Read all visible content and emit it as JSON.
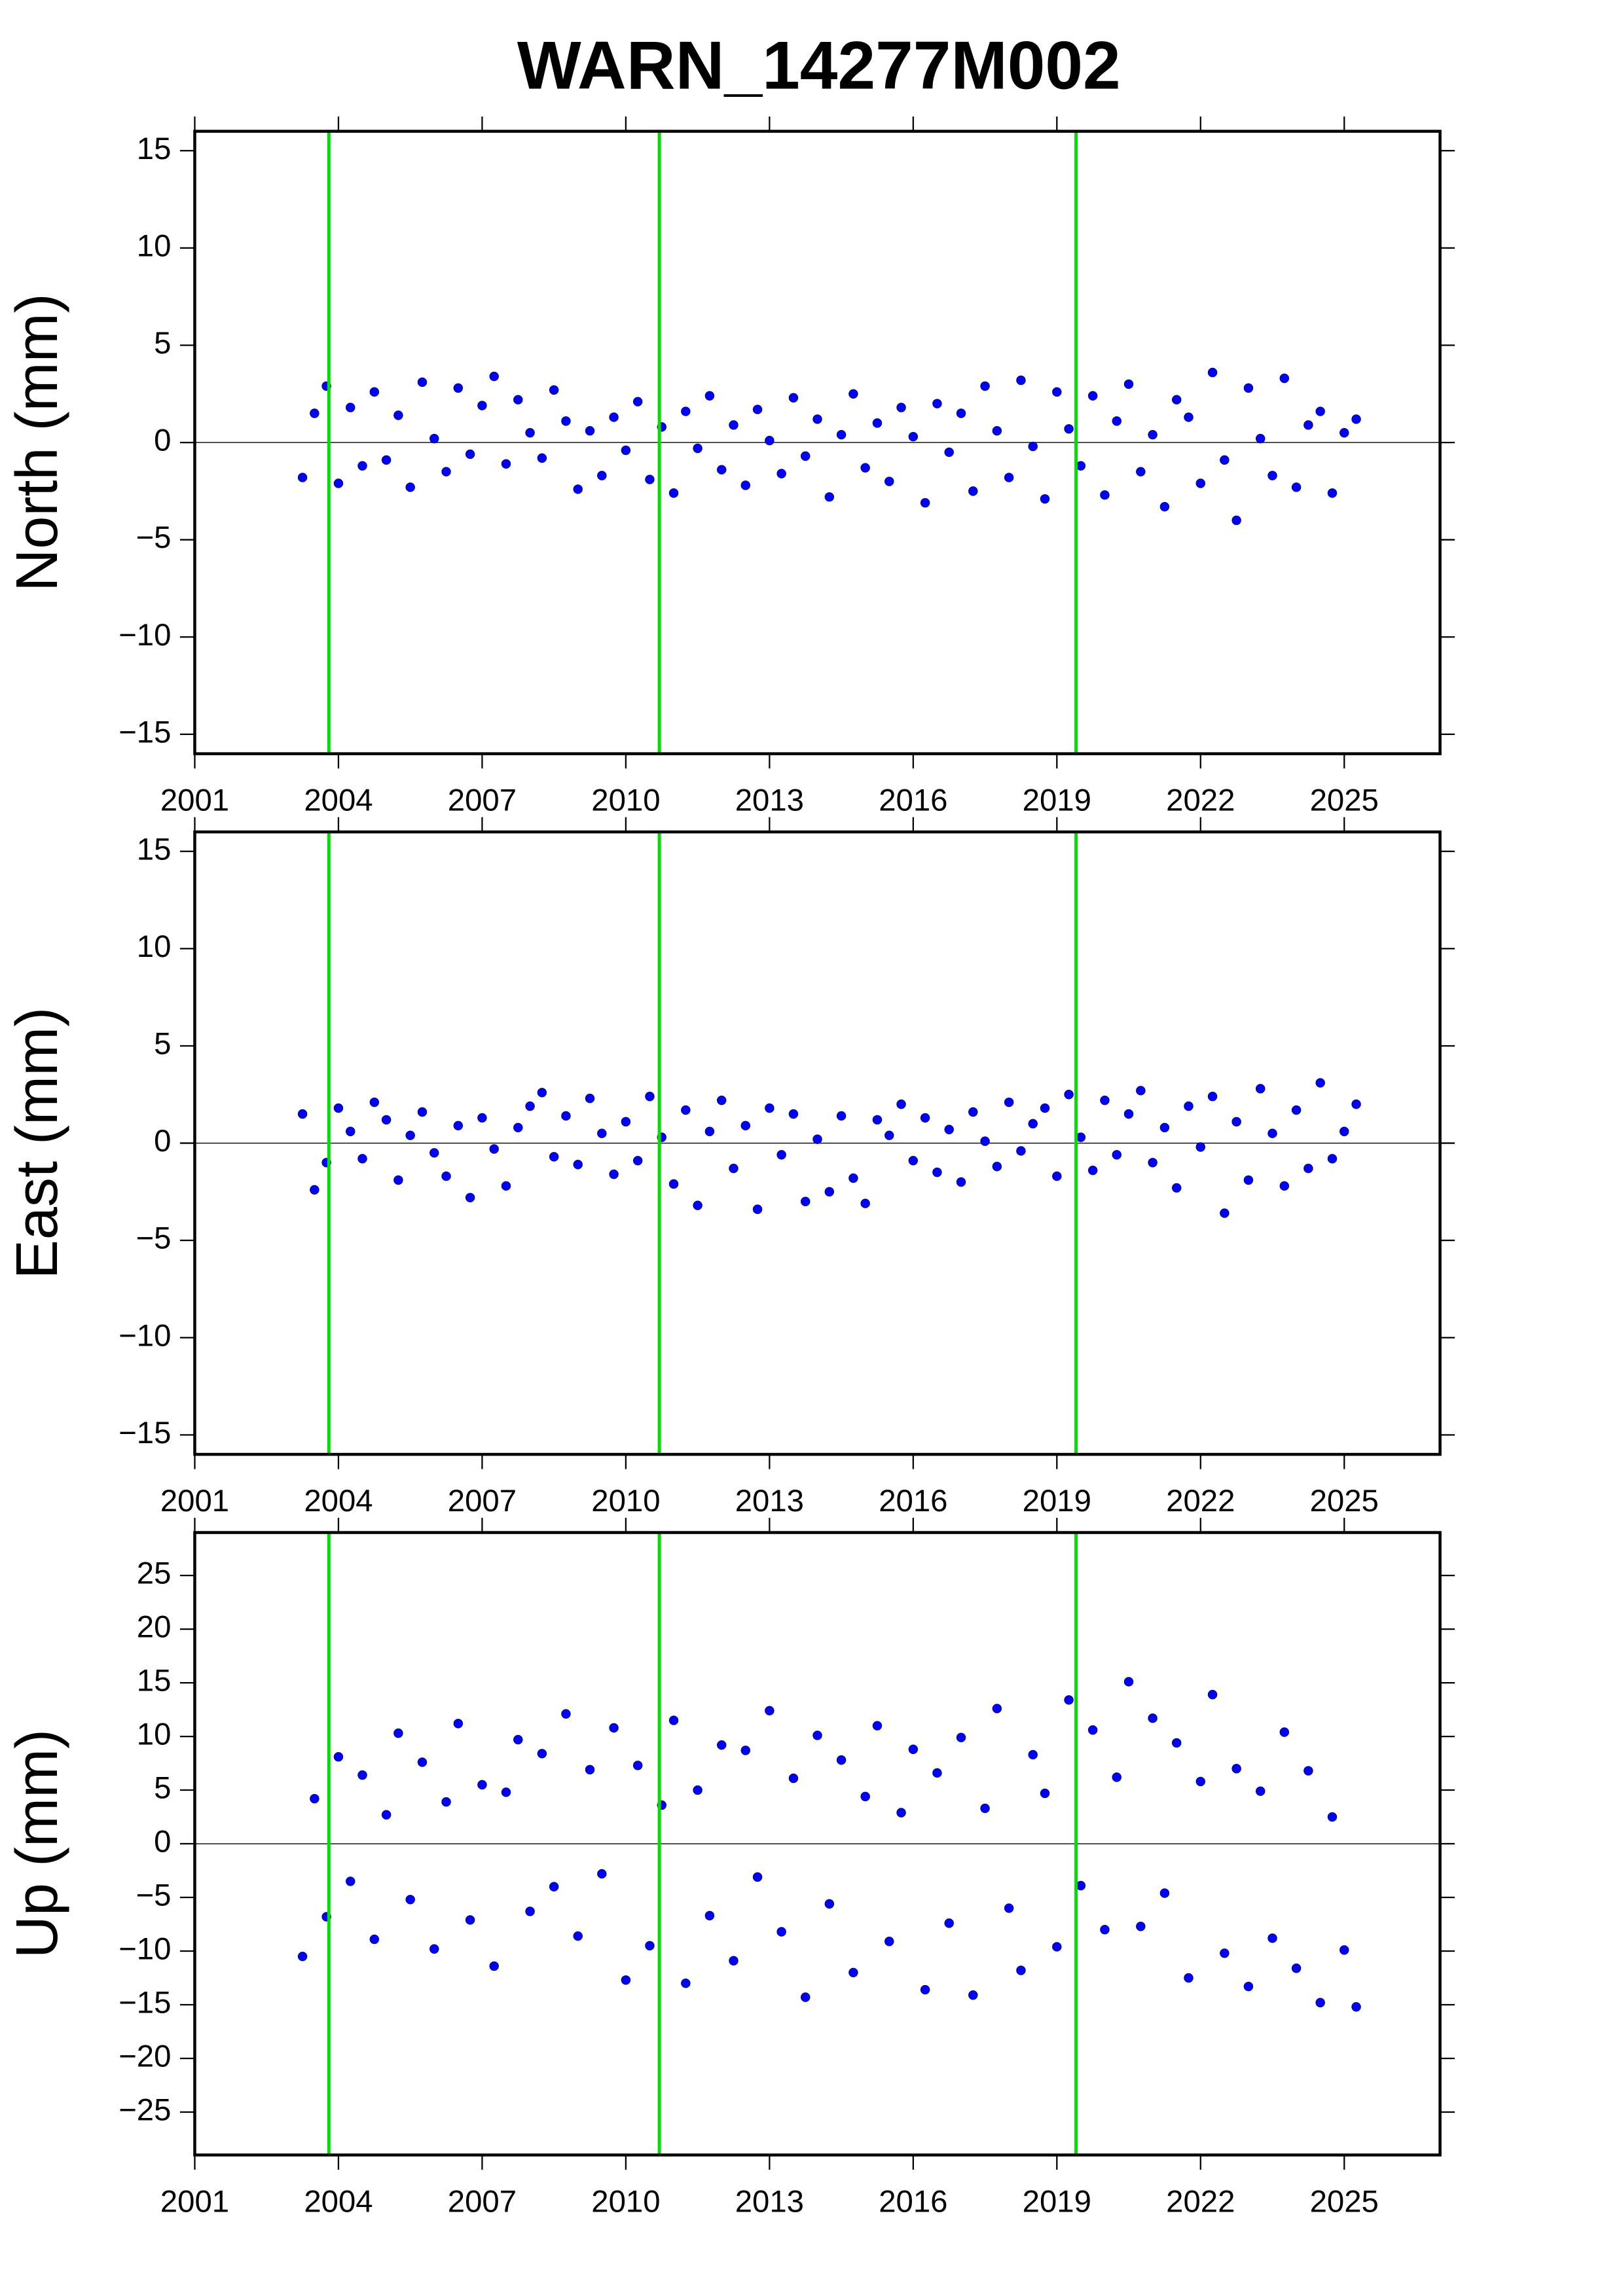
{
  "title": "WARN_14277M002",
  "chart_data": [
    {
      "type": "scatter",
      "ylabel": "North (mm)",
      "xlim": [
        2001,
        2027
      ],
      "ylim": [
        -16,
        16
      ],
      "xticks": [
        2001,
        2004,
        2007,
        2010,
        2013,
        2016,
        2019,
        2022,
        2025
      ],
      "yticks": [
        {
          "value": -15,
          "label": "−15"
        },
        {
          "value": -10,
          "label": "−10"
        },
        {
          "value": -5,
          "label": "−5"
        },
        0,
        5,
        10,
        15
      ],
      "zero_line": true,
      "vlines": [
        2003.8,
        2010.7,
        2019.4
      ],
      "vline_color": "#00e000",
      "series": [
        {
          "color": "#0000ff",
          "x": [
            2003.25,
            2003.5,
            2003.75,
            2004,
            2004.25,
            2004.5,
            2004.75,
            2005,
            2005.25,
            2005.5,
            2005.75,
            2006,
            2006.25,
            2006.5,
            2006.75,
            2007,
            2007.25,
            2007.5,
            2007.75,
            2008,
            2008.25,
            2008.5,
            2008.75,
            2009,
            2009.25,
            2009.5,
            2009.75,
            2010,
            2010.25,
            2010.5,
            2010.75,
            2011,
            2011.25,
            2011.5,
            2011.75,
            2012,
            2012.25,
            2012.5,
            2012.75,
            2013,
            2013.25,
            2013.5,
            2013.75,
            2014,
            2014.25,
            2014.5,
            2014.75,
            2015,
            2015.25,
            2015.5,
            2015.75,
            2016,
            2016.25,
            2016.5,
            2016.75,
            2017,
            2017.25,
            2017.5,
            2017.75,
            2018,
            2018.25,
            2018.5,
            2018.75,
            2019,
            2019.25,
            2019.5,
            2019.75,
            2020,
            2020.25,
            2020.5,
            2020.75,
            2021,
            2021.25,
            2021.5,
            2021.75,
            2022,
            2022.25,
            2022.5,
            2022.75,
            2023,
            2023.25,
            2023.5,
            2023.75,
            2024,
            2024.25,
            2024.5,
            2024.75,
            2025,
            2025.25
          ],
          "values": [
            -1.8,
            1.5,
            2.9,
            -2.1,
            1.8,
            -1.2,
            2.6,
            -0.9,
            1.4,
            -2.3,
            3.1,
            0.2,
            -1.5,
            2.8,
            -0.6,
            1.9,
            3.4,
            -1.1,
            2.2,
            0.5,
            -0.8,
            2.7,
            1.1,
            -2.4,
            0.6,
            -1.7,
            1.3,
            -0.4,
            2.1,
            -1.9,
            0.8,
            -2.6,
            1.6,
            -0.3,
            2.4,
            -1.4,
            0.9,
            -2.2,
            1.7,
            0.1,
            -1.6,
            2.3,
            -0.7,
            1.2,
            -2.8,
            0.4,
            2.5,
            -1.3,
            1.0,
            -2.0,
            1.8,
            0.3,
            -3.1,
            2.0,
            -0.5,
            1.5,
            -2.5,
            2.9,
            0.6,
            -1.8,
            3.2,
            -0.2,
            -2.9,
            2.6,
            0.7,
            -1.2,
            2.4,
            -2.7,
            1.1,
            3.0,
            -1.5,
            0.4,
            -3.3,
            2.2,
            1.3,
            -2.1,
            3.6,
            -0.9,
            -4.0,
            2.8,
            0.2,
            -1.7,
            3.3,
            -2.3,
            0.9,
            1.6,
            -2.6,
            0.5,
            1.2
          ]
        }
      ]
    },
    {
      "type": "scatter",
      "ylabel": "East (mm)",
      "xlim": [
        2001,
        2027
      ],
      "ylim": [
        -16,
        16
      ],
      "xticks": [
        2001,
        2004,
        2007,
        2010,
        2013,
        2016,
        2019,
        2022,
        2025
      ],
      "yticks": [
        {
          "value": -15,
          "label": "−15"
        },
        {
          "value": -10,
          "label": "−10"
        },
        {
          "value": -5,
          "label": "−5"
        },
        0,
        5,
        10,
        15
      ],
      "zero_line": true,
      "vlines": [
        2003.8,
        2010.7,
        2019.4
      ],
      "vline_color": "#00e000",
      "series": [
        {
          "color": "#0000ff",
          "x": [
            2003.25,
            2003.5,
            2003.75,
            2004,
            2004.25,
            2004.5,
            2004.75,
            2005,
            2005.25,
            2005.5,
            2005.75,
            2006,
            2006.25,
            2006.5,
            2006.75,
            2007,
            2007.25,
            2007.5,
            2007.75,
            2008,
            2008.25,
            2008.5,
            2008.75,
            2009,
            2009.25,
            2009.5,
            2009.75,
            2010,
            2010.25,
            2010.5,
            2010.75,
            2011,
            2011.25,
            2011.5,
            2011.75,
            2012,
            2012.25,
            2012.5,
            2012.75,
            2013,
            2013.25,
            2013.5,
            2013.75,
            2014,
            2014.25,
            2014.5,
            2014.75,
            2015,
            2015.25,
            2015.5,
            2015.75,
            2016,
            2016.25,
            2016.5,
            2016.75,
            2017,
            2017.25,
            2017.5,
            2017.75,
            2018,
            2018.25,
            2018.5,
            2018.75,
            2019,
            2019.25,
            2019.5,
            2019.75,
            2020,
            2020.25,
            2020.5,
            2020.75,
            2021,
            2021.25,
            2021.5,
            2021.75,
            2022,
            2022.25,
            2022.5,
            2022.75,
            2023,
            2023.25,
            2023.5,
            2023.75,
            2024,
            2024.25,
            2024.5,
            2024.75,
            2025,
            2025.25
          ],
          "values": [
            1.5,
            -2.4,
            -1.0,
            1.8,
            0.6,
            -0.8,
            2.1,
            1.2,
            -1.9,
            0.4,
            1.6,
            -0.5,
            -1.7,
            0.9,
            -2.8,
            1.3,
            -0.3,
            -2.2,
            0.8,
            1.9,
            2.6,
            -0.7,
            1.4,
            -1.1,
            2.3,
            0.5,
            -1.6,
            1.1,
            -0.9,
            2.4,
            0.3,
            -2.1,
            1.7,
            -3.2,
            0.6,
            2.2,
            -1.3,
            0.9,
            -3.4,
            1.8,
            -0.6,
            1.5,
            -3.0,
            0.2,
            -2.5,
            1.4,
            -1.8,
            -3.1,
            1.2,
            0.4,
            2.0,
            -0.9,
            1.3,
            -1.5,
            0.7,
            -2.0,
            1.6,
            0.1,
            -1.2,
            2.1,
            -0.4,
            1.0,
            1.8,
            -1.7,
            2.5,
            0.3,
            -1.4,
            2.2,
            -0.6,
            1.5,
            2.7,
            -1.0,
            0.8,
            -2.3,
            1.9,
            -0.2,
            2.4,
            -3.6,
            1.1,
            -1.9,
            2.8,
            0.5,
            -2.2,
            1.7,
            -1.3,
            3.1,
            -0.8,
            0.6,
            2.0
          ]
        }
      ]
    },
    {
      "type": "scatter",
      "ylabel": "Up (mm)",
      "xlim": [
        2001,
        2027
      ],
      "ylim": [
        -29,
        29
      ],
      "xticks": [
        2001,
        2004,
        2007,
        2010,
        2013,
        2016,
        2019,
        2022,
        2025
      ],
      "yticks": [
        {
          "value": -25,
          "label": "−25"
        },
        {
          "value": -20,
          "label": "−20"
        },
        {
          "value": -15,
          "label": "−15"
        },
        {
          "value": -10,
          "label": "−10"
        },
        {
          "value": -5,
          "label": "−5"
        },
        0,
        5,
        10,
        15,
        20,
        25
      ],
      "zero_line": true,
      "vlines": [
        2003.8,
        2010.7,
        2019.4
      ],
      "vline_color": "#00e000",
      "series": [
        {
          "color": "#0000ff",
          "x": [
            2003.25,
            2003.5,
            2003.75,
            2004,
            2004.25,
            2004.5,
            2004.75,
            2005,
            2005.25,
            2005.5,
            2005.75,
            2006,
            2006.25,
            2006.5,
            2006.75,
            2007,
            2007.25,
            2007.5,
            2007.75,
            2008,
            2008.25,
            2008.5,
            2008.75,
            2009,
            2009.25,
            2009.5,
            2009.75,
            2010,
            2010.25,
            2010.5,
            2010.75,
            2011,
            2011.25,
            2011.5,
            2011.75,
            2012,
            2012.25,
            2012.5,
            2012.75,
            2013,
            2013.25,
            2013.5,
            2013.75,
            2014,
            2014.25,
            2014.5,
            2014.75,
            2015,
            2015.25,
            2015.5,
            2015.75,
            2016,
            2016.25,
            2016.5,
            2016.75,
            2017,
            2017.25,
            2017.5,
            2017.75,
            2018,
            2018.25,
            2018.5,
            2018.75,
            2019,
            2019.25,
            2019.5,
            2019.75,
            2020,
            2020.25,
            2020.5,
            2020.75,
            2021,
            2021.25,
            2021.5,
            2021.75,
            2022,
            2022.25,
            2022.5,
            2022.75,
            2023,
            2023.25,
            2023.5,
            2023.75,
            2024,
            2024.25,
            2024.5,
            2024.75,
            2025,
            2025.25
          ],
          "values": [
            -10.5,
            4.2,
            -6.8,
            8.1,
            -3.5,
            6.4,
            -8.9,
            2.7,
            10.3,
            -5.2,
            7.6,
            -9.8,
            3.9,
            11.2,
            -7.1,
            5.5,
            -11.4,
            4.8,
            9.7,
            -6.3,
            8.4,
            -4.0,
            12.1,
            -8.6,
            6.9,
            -2.8,
            10.8,
            -12.7,
            7.3,
            -9.5,
            3.6,
            11.5,
            -13.0,
            5.0,
            -6.7,
            9.2,
            -10.9,
            8.7,
            -3.1,
            12.4,
            -8.2,
            6.1,
            -14.3,
            10.1,
            -5.6,
            7.8,
            -12.0,
            4.4,
            11.0,
            -9.1,
            2.9,
            8.8,
            -13.6,
            6.6,
            -7.4,
            9.9,
            -14.1,
            3.3,
            12.6,
            -6.0,
            -11.8,
            8.3,
            4.7,
            -9.6,
            13.4,
            -3.9,
            10.6,
            -8.0,
            6.2,
            15.1,
            -7.7,
            11.7,
            -4.6,
            9.4,
            -12.5,
            5.8,
            13.9,
            -10.2,
            7.0,
            -13.3,
            4.9,
            -8.8,
            10.4,
            -11.6,
            6.8,
            -14.8,
            2.5,
            -9.9,
            -15.2
          ]
        }
      ]
    }
  ]
}
